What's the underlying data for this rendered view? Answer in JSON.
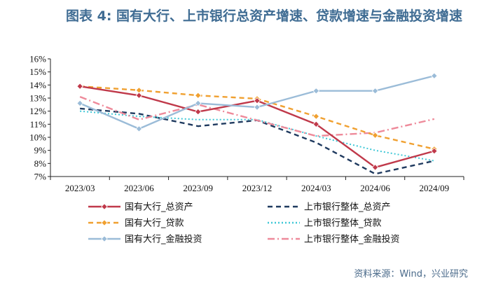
{
  "title": "图表 4:  国有大行、上市银行总资产增速、贷款增速与金融投资增速",
  "source": "资料来源：Wind，兴业研究",
  "chart_data": {
    "type": "line",
    "categories": [
      "2023/03",
      "2023/06",
      "2023/09",
      "2023/12",
      "2024/03",
      "2024/06",
      "2024/09"
    ],
    "ylim": [
      7,
      16
    ],
    "yticks": [
      "7%",
      "8%",
      "9%",
      "10%",
      "11%",
      "12%",
      "13%",
      "14%",
      "15%",
      "16%"
    ],
    "grid": false,
    "legend_position": "bottom",
    "series": [
      {
        "name": "国有大行_总资产",
        "values": [
          13.9,
          13.2,
          11.95,
          12.8,
          11.0,
          7.7,
          8.95
        ],
        "color": "#c0394a",
        "dash": "solid",
        "marker": "diamond"
      },
      {
        "name": "上市银行整体_总资产",
        "values": [
          12.2,
          11.8,
          10.85,
          11.3,
          9.6,
          7.2,
          8.2
        ],
        "color": "#1f3a5f",
        "dash": "dash",
        "marker": "none"
      },
      {
        "name": "国有大行_贷款",
        "values": [
          13.9,
          13.6,
          13.2,
          12.95,
          11.6,
          10.15,
          9.1
        ],
        "color": "#f0a030",
        "dash": "dash",
        "marker": "diamond"
      },
      {
        "name": "上市银行整体_贷款",
        "values": [
          12.0,
          11.6,
          11.35,
          11.35,
          10.1,
          9.0,
          8.2
        ],
        "color": "#3ec7d6",
        "dash": "dot",
        "marker": "none"
      },
      {
        "name": "国有大行_金融投资",
        "values": [
          12.6,
          10.65,
          12.6,
          12.3,
          13.55,
          13.55,
          14.7
        ],
        "color": "#9bbcd8",
        "dash": "solid",
        "marker": "diamond"
      },
      {
        "name": "上市银行整体_金融投资",
        "values": [
          13.1,
          11.35,
          12.5,
          11.3,
          10.1,
          10.35,
          11.4
        ],
        "color": "#ee8a9a",
        "dash": "dashdot",
        "marker": "none"
      }
    ]
  }
}
